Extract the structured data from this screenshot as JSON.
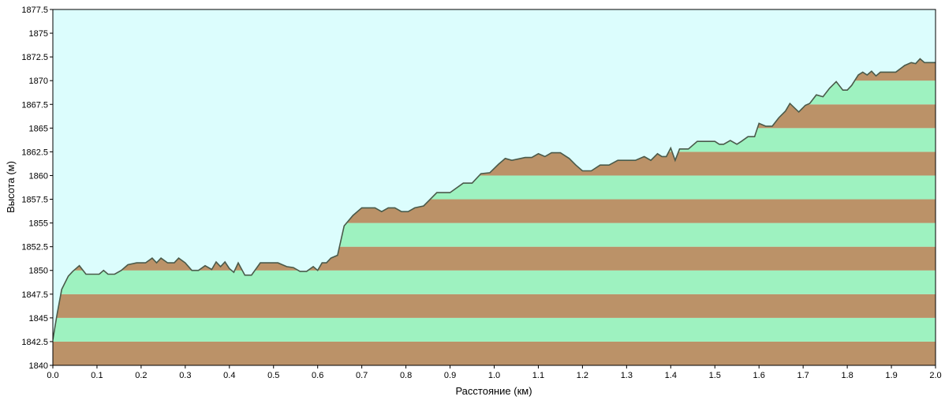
{
  "chart_data": {
    "type": "area",
    "title": "",
    "xlabel": "Расстояние  (км)",
    "ylabel": "Высота (м)",
    "xlim": [
      0.0,
      2.0
    ],
    "ylim": [
      1840,
      1877.5
    ],
    "x_ticks": [
      "0.0",
      "0.1",
      "0.2",
      "0.3",
      "0.4",
      "0.5",
      "0.6",
      "0.7",
      "0.8",
      "0.9",
      "1.0",
      "1.1",
      "1.2",
      "1.3",
      "1.4",
      "1.5",
      "1.6",
      "1.7",
      "1.8",
      "1.9",
      "2.0"
    ],
    "y_ticks": [
      "1840",
      "1842.5",
      "1845",
      "1847.5",
      "1850",
      "1852.5",
      "1855",
      "1857.5",
      "1860",
      "1862.5",
      "1865",
      "1867.5",
      "1870",
      "1872.5",
      "1875",
      "1877.5"
    ],
    "colors": {
      "sky": "#dcfdfd",
      "band_a": "#bb9268",
      "band_b": "#9ef2c0",
      "profile_line": "#4a5a4a",
      "frame": "#000000"
    },
    "series": [
      {
        "x": [
          0.0,
          0.01,
          0.02,
          0.035,
          0.045,
          0.06,
          0.075,
          0.09,
          0.105,
          0.115,
          0.125,
          0.14,
          0.155,
          0.17,
          0.19,
          0.21,
          0.225,
          0.235,
          0.245,
          0.26,
          0.275,
          0.285,
          0.3,
          0.315,
          0.33,
          0.345,
          0.36,
          0.37,
          0.38,
          0.39,
          0.4,
          0.41,
          0.42,
          0.435,
          0.45,
          0.47,
          0.49,
          0.51,
          0.53,
          0.545,
          0.56,
          0.575,
          0.59,
          0.6,
          0.61,
          0.62,
          0.63,
          0.645,
          0.66,
          0.68,
          0.7,
          0.715,
          0.73,
          0.745,
          0.76,
          0.775,
          0.79,
          0.805,
          0.82,
          0.84,
          0.87,
          0.9,
          0.93,
          0.95,
          0.97,
          0.99,
          1.01,
          1.025,
          1.04,
          1.06,
          1.07,
          1.085,
          1.1,
          1.115,
          1.13,
          1.15,
          1.17,
          1.185,
          1.2,
          1.22,
          1.24,
          1.26,
          1.28,
          1.3,
          1.32,
          1.34,
          1.355,
          1.37,
          1.38,
          1.39,
          1.4,
          1.41,
          1.42,
          1.44,
          1.46,
          1.48,
          1.5,
          1.51,
          1.52,
          1.535,
          1.55,
          1.56,
          1.575,
          1.59,
          1.6,
          1.615,
          1.63,
          1.645,
          1.66,
          1.67,
          1.69,
          1.705,
          1.715,
          1.73,
          1.745,
          1.76,
          1.775,
          1.79,
          1.8,
          1.81,
          1.825,
          1.835,
          1.845,
          1.855,
          1.865,
          1.875,
          1.89,
          1.91,
          1.93,
          1.945,
          1.955,
          1.965,
          1.975,
          1.985,
          2.0
        ],
        "y": [
          1842.7,
          1845.5,
          1848.0,
          1849.4,
          1849.9,
          1850.5,
          1849.6,
          1849.6,
          1849.6,
          1850.0,
          1849.6,
          1849.6,
          1850.0,
          1850.6,
          1850.8,
          1850.8,
          1851.3,
          1850.8,
          1851.3,
          1850.8,
          1850.8,
          1851.3,
          1850.8,
          1850.0,
          1850.0,
          1850.5,
          1850.1,
          1850.9,
          1850.4,
          1850.9,
          1850.2,
          1849.8,
          1850.8,
          1849.5,
          1849.5,
          1850.8,
          1850.8,
          1850.8,
          1850.4,
          1850.3,
          1849.9,
          1849.9,
          1850.4,
          1850.0,
          1850.8,
          1850.8,
          1851.3,
          1851.6,
          1854.7,
          1855.8,
          1856.6,
          1856.6,
          1856.6,
          1856.2,
          1856.6,
          1856.6,
          1856.2,
          1856.2,
          1856.6,
          1856.8,
          1858.2,
          1858.2,
          1859.2,
          1859.2,
          1860.2,
          1860.3,
          1861.2,
          1861.8,
          1861.6,
          1861.8,
          1861.9,
          1861.9,
          1862.3,
          1862.0,
          1862.4,
          1862.4,
          1861.8,
          1861.1,
          1860.5,
          1860.5,
          1861.1,
          1861.1,
          1861.6,
          1861.6,
          1861.6,
          1862.0,
          1861.6,
          1862.3,
          1862.0,
          1862.0,
          1862.9,
          1861.6,
          1862.8,
          1862.8,
          1863.6,
          1863.6,
          1863.6,
          1863.3,
          1863.3,
          1863.7,
          1863.3,
          1863.6,
          1864.1,
          1864.1,
          1865.5,
          1865.2,
          1865.2,
          1866.1,
          1866.8,
          1867.6,
          1866.7,
          1867.4,
          1867.6,
          1868.5,
          1868.3,
          1869.2,
          1869.9,
          1869.0,
          1869.0,
          1869.5,
          1870.6,
          1870.9,
          1870.6,
          1871.0,
          1870.5,
          1870.9,
          1870.9,
          1870.9,
          1871.6,
          1871.9,
          1871.8,
          1872.3,
          1871.9,
          1871.9,
          1871.9
        ]
      }
    ]
  }
}
